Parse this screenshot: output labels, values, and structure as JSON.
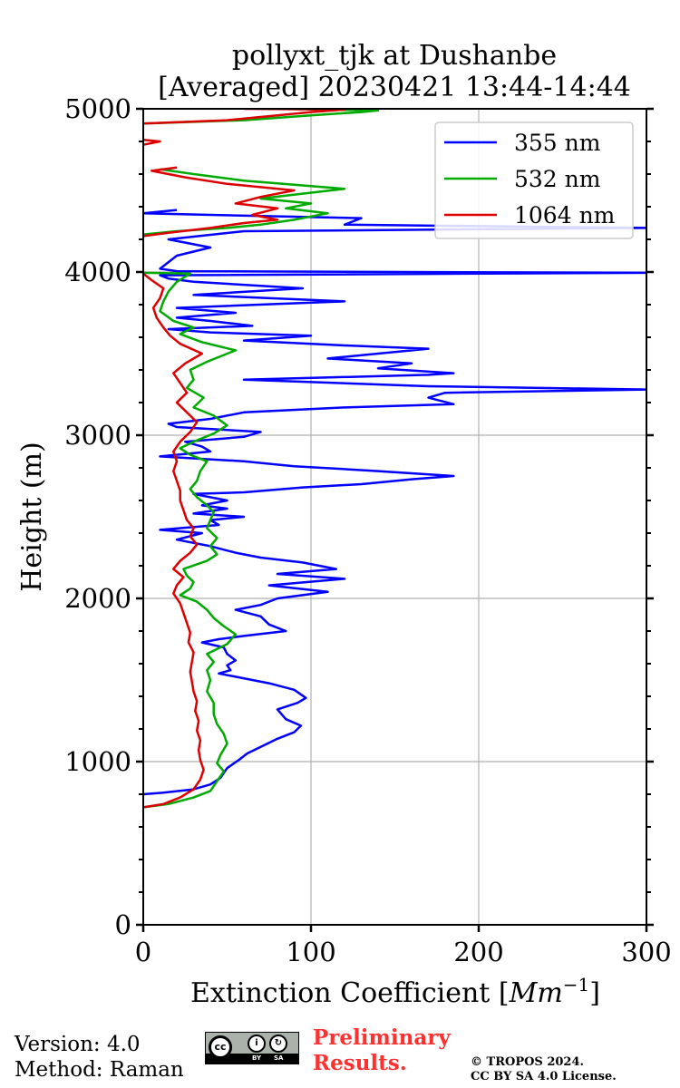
{
  "chart_data": {
    "type": "line",
    "title_line1": "pollyxt_tjk at Dushanbe",
    "title_line2": "[Averaged] 20230421 13:44-14:44",
    "xlabel": "Extinction Coefficient [Mm⁻¹]",
    "xlabel_main": "Extinction Coefficient [",
    "xlabel_unit": "Mm",
    "xlabel_exp": "−1",
    "xlabel_end": "]",
    "ylabel": "Height (m)",
    "xlim": [
      0,
      300
    ],
    "ylim": [
      0,
      5000
    ],
    "xticks": [
      0,
      100,
      200,
      300
    ],
    "yticks": [
      0,
      1000,
      2000,
      3000,
      4000,
      5000
    ],
    "grid": true,
    "legend_position": "top-right",
    "series": [
      {
        "name": "355 nm",
        "color": "#0000ff",
        "points": [
          [
            0,
            800
          ],
          [
            12,
            810
          ],
          [
            30,
            830
          ],
          [
            40,
            860
          ],
          [
            46,
            900
          ],
          [
            50,
            960
          ],
          [
            57,
            1010
          ],
          [
            62,
            1050
          ],
          [
            72,
            1100
          ],
          [
            80,
            1140
          ],
          [
            90,
            1180
          ],
          [
            94,
            1220
          ],
          [
            85,
            1260
          ],
          [
            80,
            1320
          ],
          [
            92,
            1360
          ],
          [
            97,
            1390
          ],
          [
            90,
            1440
          ],
          [
            75,
            1480
          ],
          [
            55,
            1520
          ],
          [
            45,
            1540
          ],
          [
            52,
            1560
          ],
          [
            50,
            1590
          ],
          [
            55,
            1620
          ],
          [
            50,
            1660
          ],
          [
            48,
            1700
          ],
          [
            35,
            1730
          ],
          [
            45,
            1750
          ],
          [
            60,
            1770
          ],
          [
            85,
            1800
          ],
          [
            75,
            1840
          ],
          [
            70,
            1890
          ],
          [
            55,
            1930
          ],
          [
            70,
            1960
          ],
          [
            80,
            2000
          ],
          [
            110,
            2040
          ],
          [
            75,
            2080
          ],
          [
            120,
            2120
          ],
          [
            80,
            2150
          ],
          [
            115,
            2180
          ],
          [
            95,
            2220
          ],
          [
            70,
            2250
          ],
          [
            55,
            2280
          ],
          [
            40,
            2320
          ],
          [
            20,
            2360
          ],
          [
            35,
            2400
          ],
          [
            10,
            2420
          ],
          [
            45,
            2450
          ],
          [
            40,
            2480
          ],
          [
            60,
            2500
          ],
          [
            30,
            2520
          ],
          [
            50,
            2550
          ],
          [
            35,
            2570
          ],
          [
            50,
            2600
          ],
          [
            30,
            2640
          ],
          [
            60,
            2650
          ],
          [
            95,
            2680
          ],
          [
            130,
            2700
          ],
          [
            160,
            2730
          ],
          [
            185,
            2750
          ],
          [
            140,
            2780
          ],
          [
            90,
            2810
          ],
          [
            60,
            2840
          ],
          [
            10,
            2870
          ],
          [
            40,
            2900
          ],
          [
            35,
            2930
          ],
          [
            25,
            2960
          ],
          [
            60,
            2990
          ],
          [
            70,
            3020
          ],
          [
            20,
            3050
          ],
          [
            15,
            3070
          ],
          [
            40,
            3100
          ],
          [
            60,
            3140
          ],
          [
            120,
            3170
          ],
          [
            185,
            3190
          ],
          [
            170,
            3230
          ],
          [
            180,
            3260
          ],
          [
            300,
            3280
          ],
          [
            170,
            3300
          ],
          [
            60,
            3340
          ],
          [
            170,
            3370
          ],
          [
            185,
            3380
          ],
          [
            140,
            3410
          ],
          [
            160,
            3440
          ],
          [
            110,
            3470
          ],
          [
            140,
            3500
          ],
          [
            170,
            3530
          ],
          [
            120,
            3550
          ],
          [
            60,
            3580
          ],
          [
            100,
            3610
          ],
          [
            40,
            3630
          ],
          [
            15,
            3650
          ],
          [
            65,
            3670
          ],
          [
            40,
            3700
          ],
          [
            20,
            3720
          ],
          [
            55,
            3750
          ],
          [
            20,
            3780
          ],
          [
            120,
            3820
          ],
          [
            30,
            3860
          ],
          [
            95,
            3900
          ],
          [
            30,
            3940
          ],
          [
            15,
            3960
          ],
          [
            10,
            3980
          ],
          [
            300,
            3995
          ],
          [
            20,
            4005
          ],
          [
            10,
            4020
          ],
          [
            20,
            4100
          ],
          [
            40,
            4150
          ],
          [
            15,
            4200
          ],
          [
            60,
            4250
          ],
          [
            300,
            4270
          ],
          [
            120,
            4290
          ],
          [
            130,
            4330
          ],
          [
            40,
            4350
          ],
          [
            0,
            4360
          ],
          [
            20,
            4380
          ]
        ]
      },
      {
        "name": "532 nm",
        "color": "#00aa00",
        "points": [
          [
            0,
            720
          ],
          [
            15,
            740
          ],
          [
            30,
            780
          ],
          [
            40,
            820
          ],
          [
            44,
            880
          ],
          [
            48,
            940
          ],
          [
            44,
            990
          ],
          [
            46,
            1040
          ],
          [
            50,
            1110
          ],
          [
            48,
            1170
          ],
          [
            44,
            1230
          ],
          [
            42,
            1290
          ],
          [
            42,
            1360
          ],
          [
            38,
            1430
          ],
          [
            40,
            1500
          ],
          [
            38,
            1560
          ],
          [
            42,
            1610
          ],
          [
            38,
            1660
          ],
          [
            50,
            1720
          ],
          [
            55,
            1780
          ],
          [
            48,
            1830
          ],
          [
            42,
            1880
          ],
          [
            38,
            1930
          ],
          [
            32,
            1980
          ],
          [
            22,
            2020
          ],
          [
            28,
            2060
          ],
          [
            30,
            2100
          ],
          [
            26,
            2140
          ],
          [
            24,
            2180
          ],
          [
            38,
            2230
          ],
          [
            44,
            2270
          ],
          [
            40,
            2320
          ],
          [
            44,
            2370
          ],
          [
            38,
            2430
          ],
          [
            40,
            2480
          ],
          [
            42,
            2530
          ],
          [
            38,
            2570
          ],
          [
            32,
            2620
          ],
          [
            28,
            2670
          ],
          [
            32,
            2720
          ],
          [
            34,
            2780
          ],
          [
            38,
            2840
          ],
          [
            28,
            2880
          ],
          [
            22,
            2920
          ],
          [
            30,
            2960
          ],
          [
            42,
            3010
          ],
          [
            50,
            3060
          ],
          [
            42,
            3120
          ],
          [
            30,
            3170
          ],
          [
            36,
            3230
          ],
          [
            26,
            3290
          ],
          [
            30,
            3340
          ],
          [
            28,
            3400
          ],
          [
            38,
            3450
          ],
          [
            55,
            3520
          ],
          [
            35,
            3570
          ],
          [
            22,
            3620
          ],
          [
            30,
            3660
          ],
          [
            18,
            3700
          ],
          [
            10,
            3760
          ],
          [
            12,
            3820
          ],
          [
            15,
            3880
          ],
          [
            20,
            3940
          ],
          [
            28,
            3990
          ],
          [
            0,
            3995
          ]
        ]
      },
      {
        "name": "1064 nm",
        "color": "#dd0000",
        "points": [
          [
            0,
            720
          ],
          [
            12,
            740
          ],
          [
            22,
            780
          ],
          [
            30,
            830
          ],
          [
            34,
            890
          ],
          [
            36,
            950
          ],
          [
            34,
            1010
          ],
          [
            33,
            1070
          ],
          [
            34,
            1130
          ],
          [
            32,
            1190
          ],
          [
            33,
            1250
          ],
          [
            31,
            1310
          ],
          [
            32,
            1370
          ],
          [
            30,
            1430
          ],
          [
            29,
            1490
          ],
          [
            28,
            1550
          ],
          [
            29,
            1610
          ],
          [
            30,
            1670
          ],
          [
            27,
            1730
          ],
          [
            28,
            1790
          ],
          [
            26,
            1850
          ],
          [
            24,
            1910
          ],
          [
            22,
            1970
          ],
          [
            18,
            2030
          ],
          [
            20,
            2080
          ],
          [
            24,
            2130
          ],
          [
            18,
            2180
          ],
          [
            22,
            2230
          ],
          [
            28,
            2280
          ],
          [
            32,
            2330
          ],
          [
            28,
            2380
          ],
          [
            30,
            2430
          ],
          [
            26,
            2480
          ],
          [
            24,
            2540
          ],
          [
            22,
            2600
          ],
          [
            22,
            2660
          ],
          [
            20,
            2720
          ],
          [
            18,
            2780
          ],
          [
            20,
            2840
          ],
          [
            18,
            2900
          ],
          [
            22,
            2960
          ],
          [
            28,
            3020
          ],
          [
            32,
            3080
          ],
          [
            26,
            3140
          ],
          [
            20,
            3200
          ],
          [
            26,
            3260
          ],
          [
            22,
            3320
          ],
          [
            18,
            3380
          ],
          [
            25,
            3440
          ],
          [
            35,
            3500
          ],
          [
            22,
            3560
          ],
          [
            16,
            3610
          ],
          [
            12,
            3660
          ],
          [
            8,
            3720
          ],
          [
            6,
            3780
          ],
          [
            10,
            3840
          ],
          [
            12,
            3900
          ],
          [
            5,
            3950
          ],
          [
            0,
            3990
          ]
        ]
      },
      {
        "name": "532 nm",
        "color": "#00aa00",
        "points": [
          [
            0,
            4230
          ],
          [
            20,
            4250
          ],
          [
            50,
            4270
          ],
          [
            70,
            4290
          ],
          [
            90,
            4320
          ],
          [
            110,
            4360
          ],
          [
            85,
            4390
          ],
          [
            100,
            4420
          ],
          [
            70,
            4450
          ],
          [
            120,
            4510
          ],
          [
            60,
            4560
          ],
          [
            30,
            4600
          ],
          [
            10,
            4630
          ]
        ]
      },
      {
        "name": "1064 nm",
        "color": "#dd0000",
        "points": [
          [
            0,
            4220
          ],
          [
            15,
            4240
          ],
          [
            40,
            4270
          ],
          [
            60,
            4300
          ],
          [
            80,
            4320
          ],
          [
            65,
            4350
          ],
          [
            80,
            4390
          ],
          [
            55,
            4420
          ],
          [
            70,
            4460
          ],
          [
            90,
            4500
          ],
          [
            50,
            4540
          ],
          [
            25,
            4580
          ],
          [
            5,
            4620
          ],
          [
            20,
            4640
          ]
        ]
      },
      {
        "name": "532 nm",
        "color": "#00aa00",
        "points": [
          [
            0,
            4910
          ],
          [
            60,
            4930
          ],
          [
            100,
            4960
          ],
          [
            130,
            4980
          ],
          [
            140,
            4990
          ],
          [
            80,
            5000
          ]
        ]
      },
      {
        "name": "1064 nm",
        "color": "#dd0000",
        "points": [
          [
            0,
            4910
          ],
          [
            50,
            4930
          ],
          [
            80,
            4960
          ],
          [
            100,
            4980
          ],
          [
            120,
            4995
          ],
          [
            60,
            5000
          ]
        ]
      },
      {
        "name": "1064 nm",
        "color": "#dd0000",
        "points": [
          [
            0,
            4810
          ],
          [
            10,
            4800
          ],
          [
            0,
            4780
          ]
        ]
      }
    ]
  },
  "footer": {
    "version": "Version: 4.0",
    "method": "Method: Raman",
    "license_badge": [
      "cc",
      "BY",
      "SA"
    ],
    "preliminary_line1": "Preliminary",
    "preliminary_line2": "Results.",
    "copyright_line1": "© TROPOS 2024.",
    "copyright_line2": "CC BY SA 4.0 License."
  }
}
